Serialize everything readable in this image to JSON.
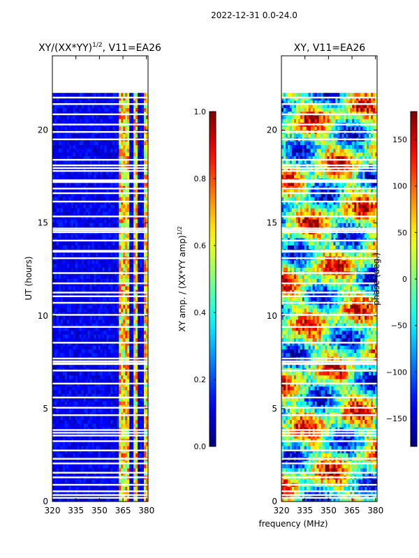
{
  "suptitle": "2022-12-31 0.0-24.0",
  "chart_data": [
    {
      "type": "heatmap",
      "title": "XY/(XX*YY)",
      "title_exponent": "1/2",
      "title_suffix": ", V11=EA26",
      "xlabel": "",
      "ylabel": "UT (hours)",
      "xlim": [
        320,
        381
      ],
      "ylim": [
        0,
        24
      ],
      "xticks": [
        320,
        335,
        350,
        365,
        380
      ],
      "yticks": [
        0,
        5,
        10,
        15,
        20
      ],
      "data_time_range": [
        0.0,
        22.0
      ],
      "bright_channel_bands_mhz": [
        [
          363,
          366
        ],
        [
          367,
          368.5
        ],
        [
          372,
          375
        ],
        [
          379,
          381
        ]
      ],
      "colorbar": {
        "label": "XY amp. / (XX*YY amp)",
        "label_exponent": "1/2",
        "range": [
          0.0,
          1.0
        ],
        "ticks": [
          0.0,
          0.2,
          0.4,
          0.6,
          0.8,
          1.0
        ],
        "tick_labels": [
          "0.0",
          "0.2",
          "0.4",
          "0.6",
          "0.8",
          "1.0"
        ]
      },
      "colormap": "jet"
    },
    {
      "type": "heatmap",
      "title": "XY, V11=EA26",
      "xlabel": "frequency (MHz)",
      "ylabel": "",
      "xlim": [
        320,
        381
      ],
      "ylim": [
        0,
        24
      ],
      "xticks": [
        320,
        335,
        350,
        365,
        380
      ],
      "yticks": [
        0,
        5,
        10,
        15,
        20
      ],
      "data_time_range": [
        0.0,
        22.0
      ],
      "colorbar": {
        "label": "phase (deg.)",
        "range": [
          -180,
          180
        ],
        "ticks": [
          -150,
          -100,
          -50,
          0,
          50,
          100,
          150
        ],
        "tick_labels": [
          "−150",
          "−100",
          "−50",
          "0",
          "50",
          "100",
          "150"
        ]
      },
      "colormap": "jet"
    }
  ],
  "gap_rows_hours": [
    0.2,
    0.35,
    0.55,
    0.9,
    1.3,
    1.55,
    2.05,
    2.3,
    2.75,
    3.25,
    3.55,
    3.7,
    3.85,
    4.65,
    5.05,
    5.6,
    6.35,
    7.05,
    7.4,
    7.45,
    7.55,
    7.7,
    8.55,
    9.4,
    10.05,
    10.7,
    11.05,
    11.25,
    11.75,
    12.3,
    13.1,
    13.45,
    13.5,
    14.05,
    14.5,
    14.6,
    14.7,
    15.35,
    16.15,
    16.6,
    16.85,
    17.2,
    17.25,
    17.3,
    17.8,
    17.95,
    18.1,
    18.4,
    19.5,
    19.9,
    20.3,
    20.85,
    21.4,
    21.75
  ]
}
